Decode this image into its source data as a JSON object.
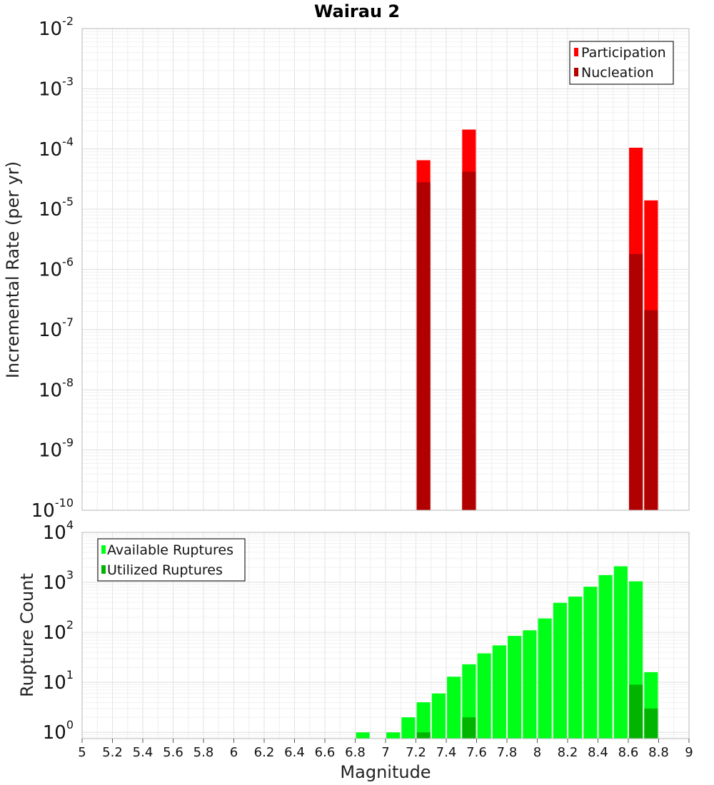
{
  "chart_data": [
    {
      "type": "bar",
      "title": "Wairau 2",
      "xlabel": "",
      "ylabel": "Incremental Rate (per yr)",
      "xlim": [
        5,
        9
      ],
      "ylim": [
        1e-10,
        0.01
      ],
      "yscale": "log",
      "grid": true,
      "legend_position": "top-right",
      "bar_width": 0.09,
      "series": [
        {
          "name": "Participation",
          "color": "#ff0000",
          "x": [
            7.25,
            7.55,
            8.65,
            8.75
          ],
          "values": [
            6.5e-05,
            0.00021,
            0.000105,
            1.4e-05
          ]
        },
        {
          "name": "Nucleation",
          "color": "#b00000",
          "x": [
            7.25,
            7.55,
            8.65,
            8.75
          ],
          "values": [
            2.8e-05,
            4.2e-05,
            1.8e-06,
            2.1e-07
          ]
        }
      ],
      "y_tick_exponents": [
        -10,
        -9,
        -8,
        -7,
        -6,
        -5,
        -4,
        -3,
        -2
      ]
    },
    {
      "type": "bar",
      "title": "",
      "xlabel": "Magnitude",
      "ylabel": "Rupture Count",
      "xlim": [
        5,
        9
      ],
      "ylim": [
        0.75,
        10000
      ],
      "yscale": "log",
      "grid": true,
      "legend_position": "top-left",
      "bar_width": 0.09,
      "series": [
        {
          "name": "Available Ruptures",
          "color": "#00ff18",
          "x": [
            6.85,
            7.05,
            7.15,
            7.25,
            7.35,
            7.45,
            7.55,
            7.65,
            7.75,
            7.85,
            7.95,
            8.05,
            8.15,
            8.25,
            8.35,
            8.45,
            8.55,
            8.65,
            8.75
          ],
          "values": [
            1,
            1,
            2,
            4,
            6,
            13,
            23,
            38,
            55,
            85,
            110,
            190,
            390,
            520,
            820,
            1400,
            2100,
            1050,
            16
          ]
        },
        {
          "name": "Utilized Ruptures",
          "color": "#00b400",
          "x": [
            7.25,
            7.55,
            8.65,
            8.75
          ],
          "values": [
            1,
            2,
            9,
            3
          ]
        }
      ],
      "y_tick_exponents": [
        0,
        1,
        2,
        3,
        4
      ]
    }
  ],
  "x_ticks": [
    "5",
    "5.2",
    "5.4",
    "5.6",
    "5.8",
    "6",
    "6.2",
    "6.4",
    "6.6",
    "6.8",
    "7",
    "7.2",
    "7.4",
    "7.6",
    "7.8",
    "8",
    "8.2",
    "8.4",
    "8.6",
    "8.8",
    "9"
  ],
  "tick_base": "10"
}
